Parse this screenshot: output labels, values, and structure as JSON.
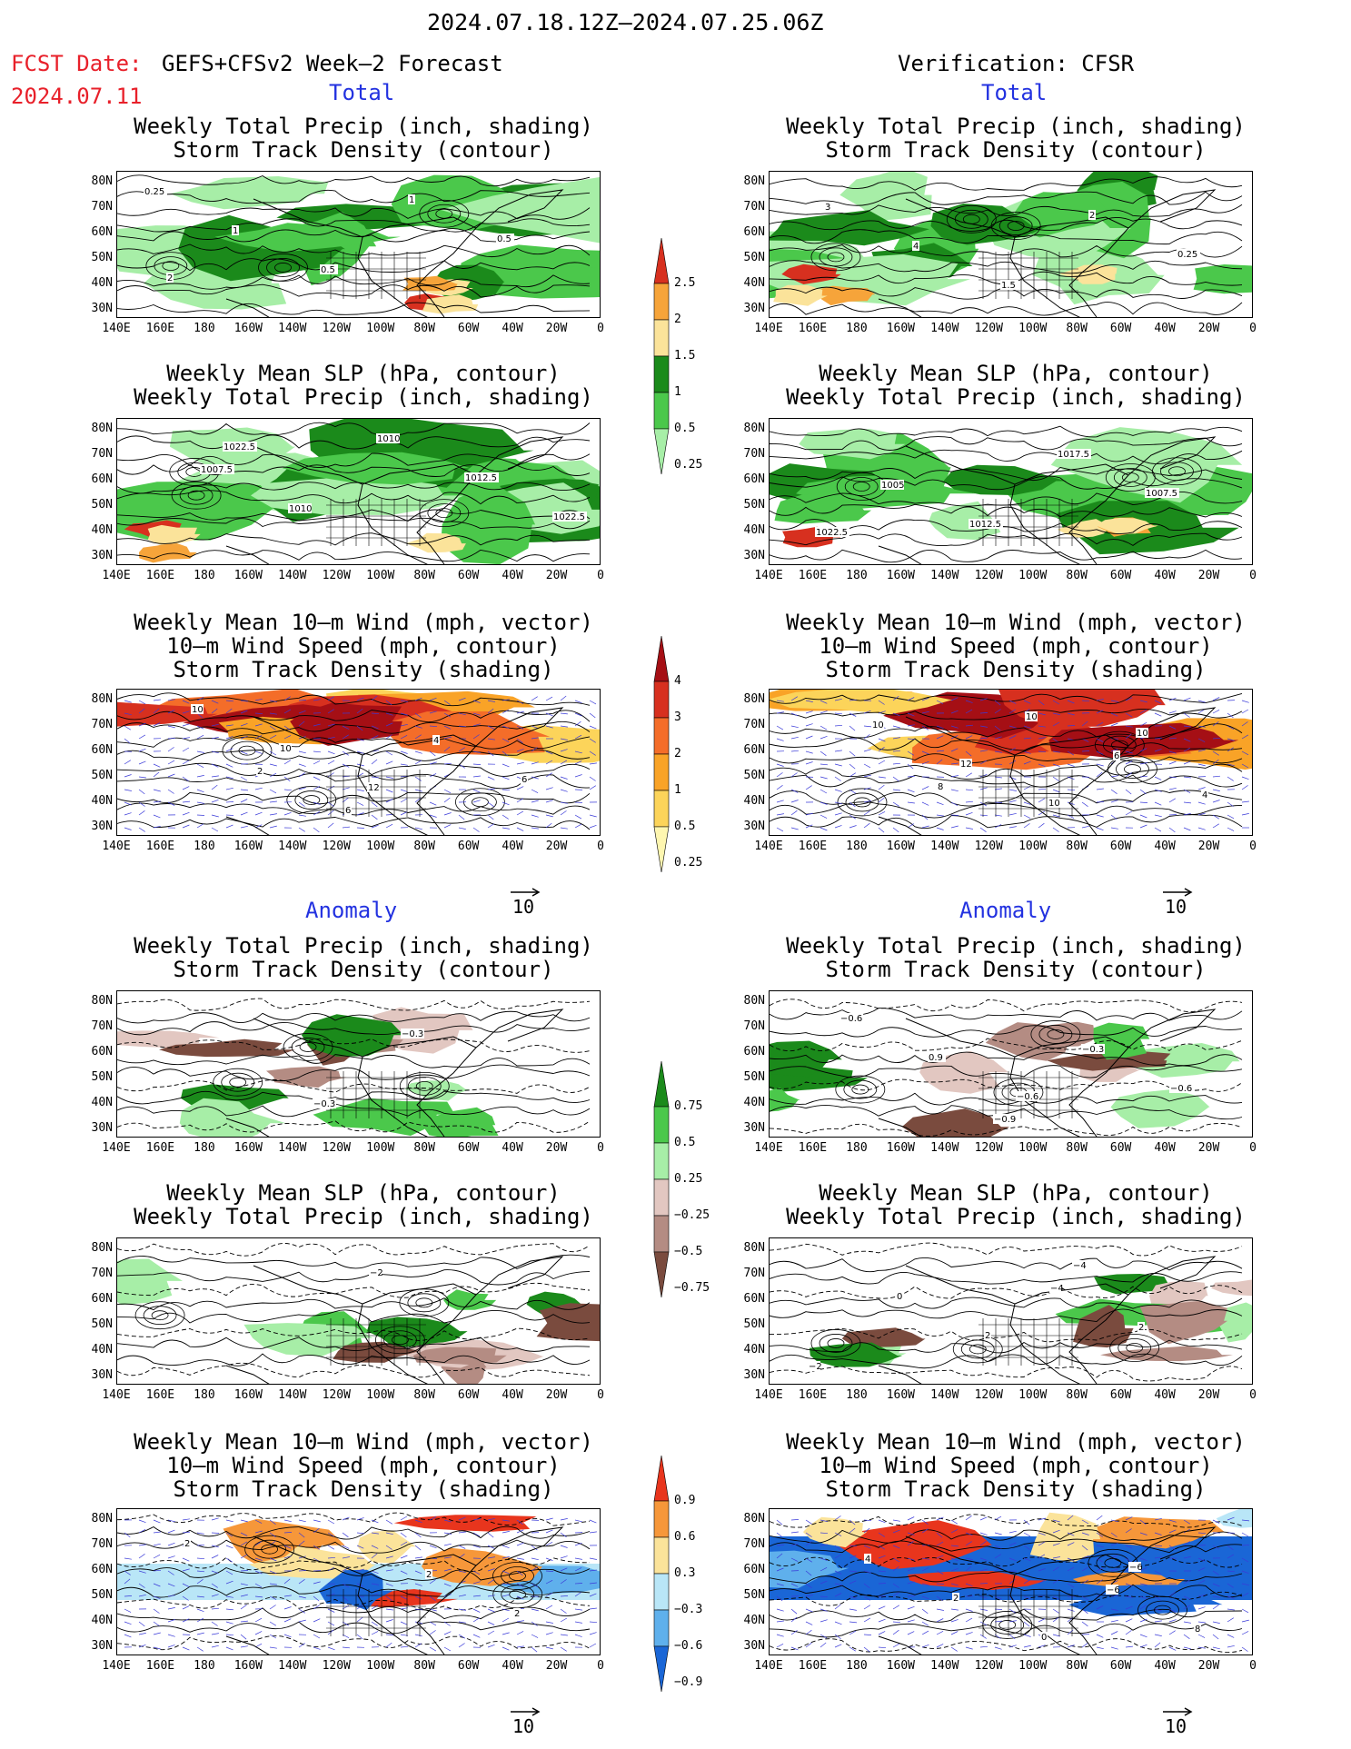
{
  "header": {
    "date_range": "2024.07.18.12Z–2024.07.25.06Z",
    "fcst_label": "FCST Date:",
    "fcst_model": "GEFS+CFSv2 Week–2 Forecast",
    "fcst_date": "2024.07.11",
    "verification": "Verification: CFSR"
  },
  "sections": {
    "total": "Total",
    "anomaly": "Anomaly"
  },
  "panel_titles": {
    "precip_storm": "Weekly Total Precip (inch, shading)\nStorm Track Density (contour)",
    "slp_precip": "Weekly Mean SLP (hPa, contour)\nWeekly Total Precip (inch, shading)",
    "wind_storm": "Weekly Mean 10–m Wind (mph, vector)\n10–m Wind Speed (mph, contour)\nStorm Track Density (shading)"
  },
  "axes": {
    "y_ticks": [
      "80N",
      "70N",
      "60N",
      "50N",
      "40N",
      "30N"
    ],
    "x_ticks": [
      "140E",
      "160E",
      "180",
      "160W",
      "140W",
      "120W",
      "100W",
      "80W",
      "60W",
      "40W",
      "20W",
      "0"
    ]
  },
  "colorbars": {
    "precip_total": {
      "labels": [
        "2.5",
        "2",
        "1.5",
        "1",
        "0.5",
        "0.25"
      ],
      "colors": [
        "#d7301f",
        "#f6a43a",
        "#fbe39a",
        "#1b8a1b",
        "#4bc84b",
        "#a7eea7"
      ]
    },
    "storm_total": {
      "labels": [
        "4",
        "3",
        "2",
        "1",
        "0.5",
        "0.25"
      ],
      "colors": [
        "#a50f15",
        "#d7301f",
        "#f46d29",
        "#f9a327",
        "#fcd45a",
        "#fef6b0"
      ]
    },
    "precip_anom": {
      "labels": [
        "0.75",
        "0.5",
        "0.25",
        "−0.25",
        "−0.5",
        "−0.75"
      ],
      "colors": [
        "#1b8a1b",
        "#4bc84b",
        "#a7eea7",
        "#e2c7c1",
        "#b48c83",
        "#7a4b3e"
      ]
    },
    "storm_anom": {
      "labels": [
        "0.9",
        "0.6",
        "0.3",
        "−0.3",
        "−0.6",
        "−0.9"
      ],
      "colors": [
        "#e8351d",
        "#f6973a",
        "#fbe39a",
        "#b9e6f7",
        "#5fb0ec",
        "#1a66d6"
      ]
    }
  },
  "vector_ref": {
    "label": "10"
  },
  "contour_labels": {
    "p1": [
      "0.25",
      "1",
      "0.5",
      "1",
      "0.5",
      "2"
    ],
    "p2": [
      "3",
      "4",
      "1.5",
      "2",
      "0.25"
    ],
    "p3": [
      "1007.5",
      "1010",
      "1010",
      "1012.5",
      "1022.5",
      "1022.5"
    ],
    "p4": [
      "1005",
      "1012.5",
      "1017.5",
      "1007.5",
      "1022.5"
    ],
    "p5": [
      "2",
      "6",
      "4",
      "6",
      "10",
      "10",
      "12"
    ],
    "p6": [
      "8",
      "10",
      "6",
      "4",
      "10",
      "12",
      "10",
      "10"
    ],
    "p7": [
      "−0.3",
      "−0.3"
    ],
    "p8": [
      "−0.9",
      "−0.3",
      "−0.6",
      "−0.6",
      "0.9",
      "−0.6"
    ],
    "p9": [
      "−2"
    ],
    "p10": [
      "−4",
      "2",
      "−2",
      "0",
      "2",
      "−4"
    ],
    "p11": [
      "2",
      "2",
      "2"
    ],
    "p12": [
      "−6",
      "8",
      "4",
      "2",
      "0",
      "−6"
    ]
  }
}
